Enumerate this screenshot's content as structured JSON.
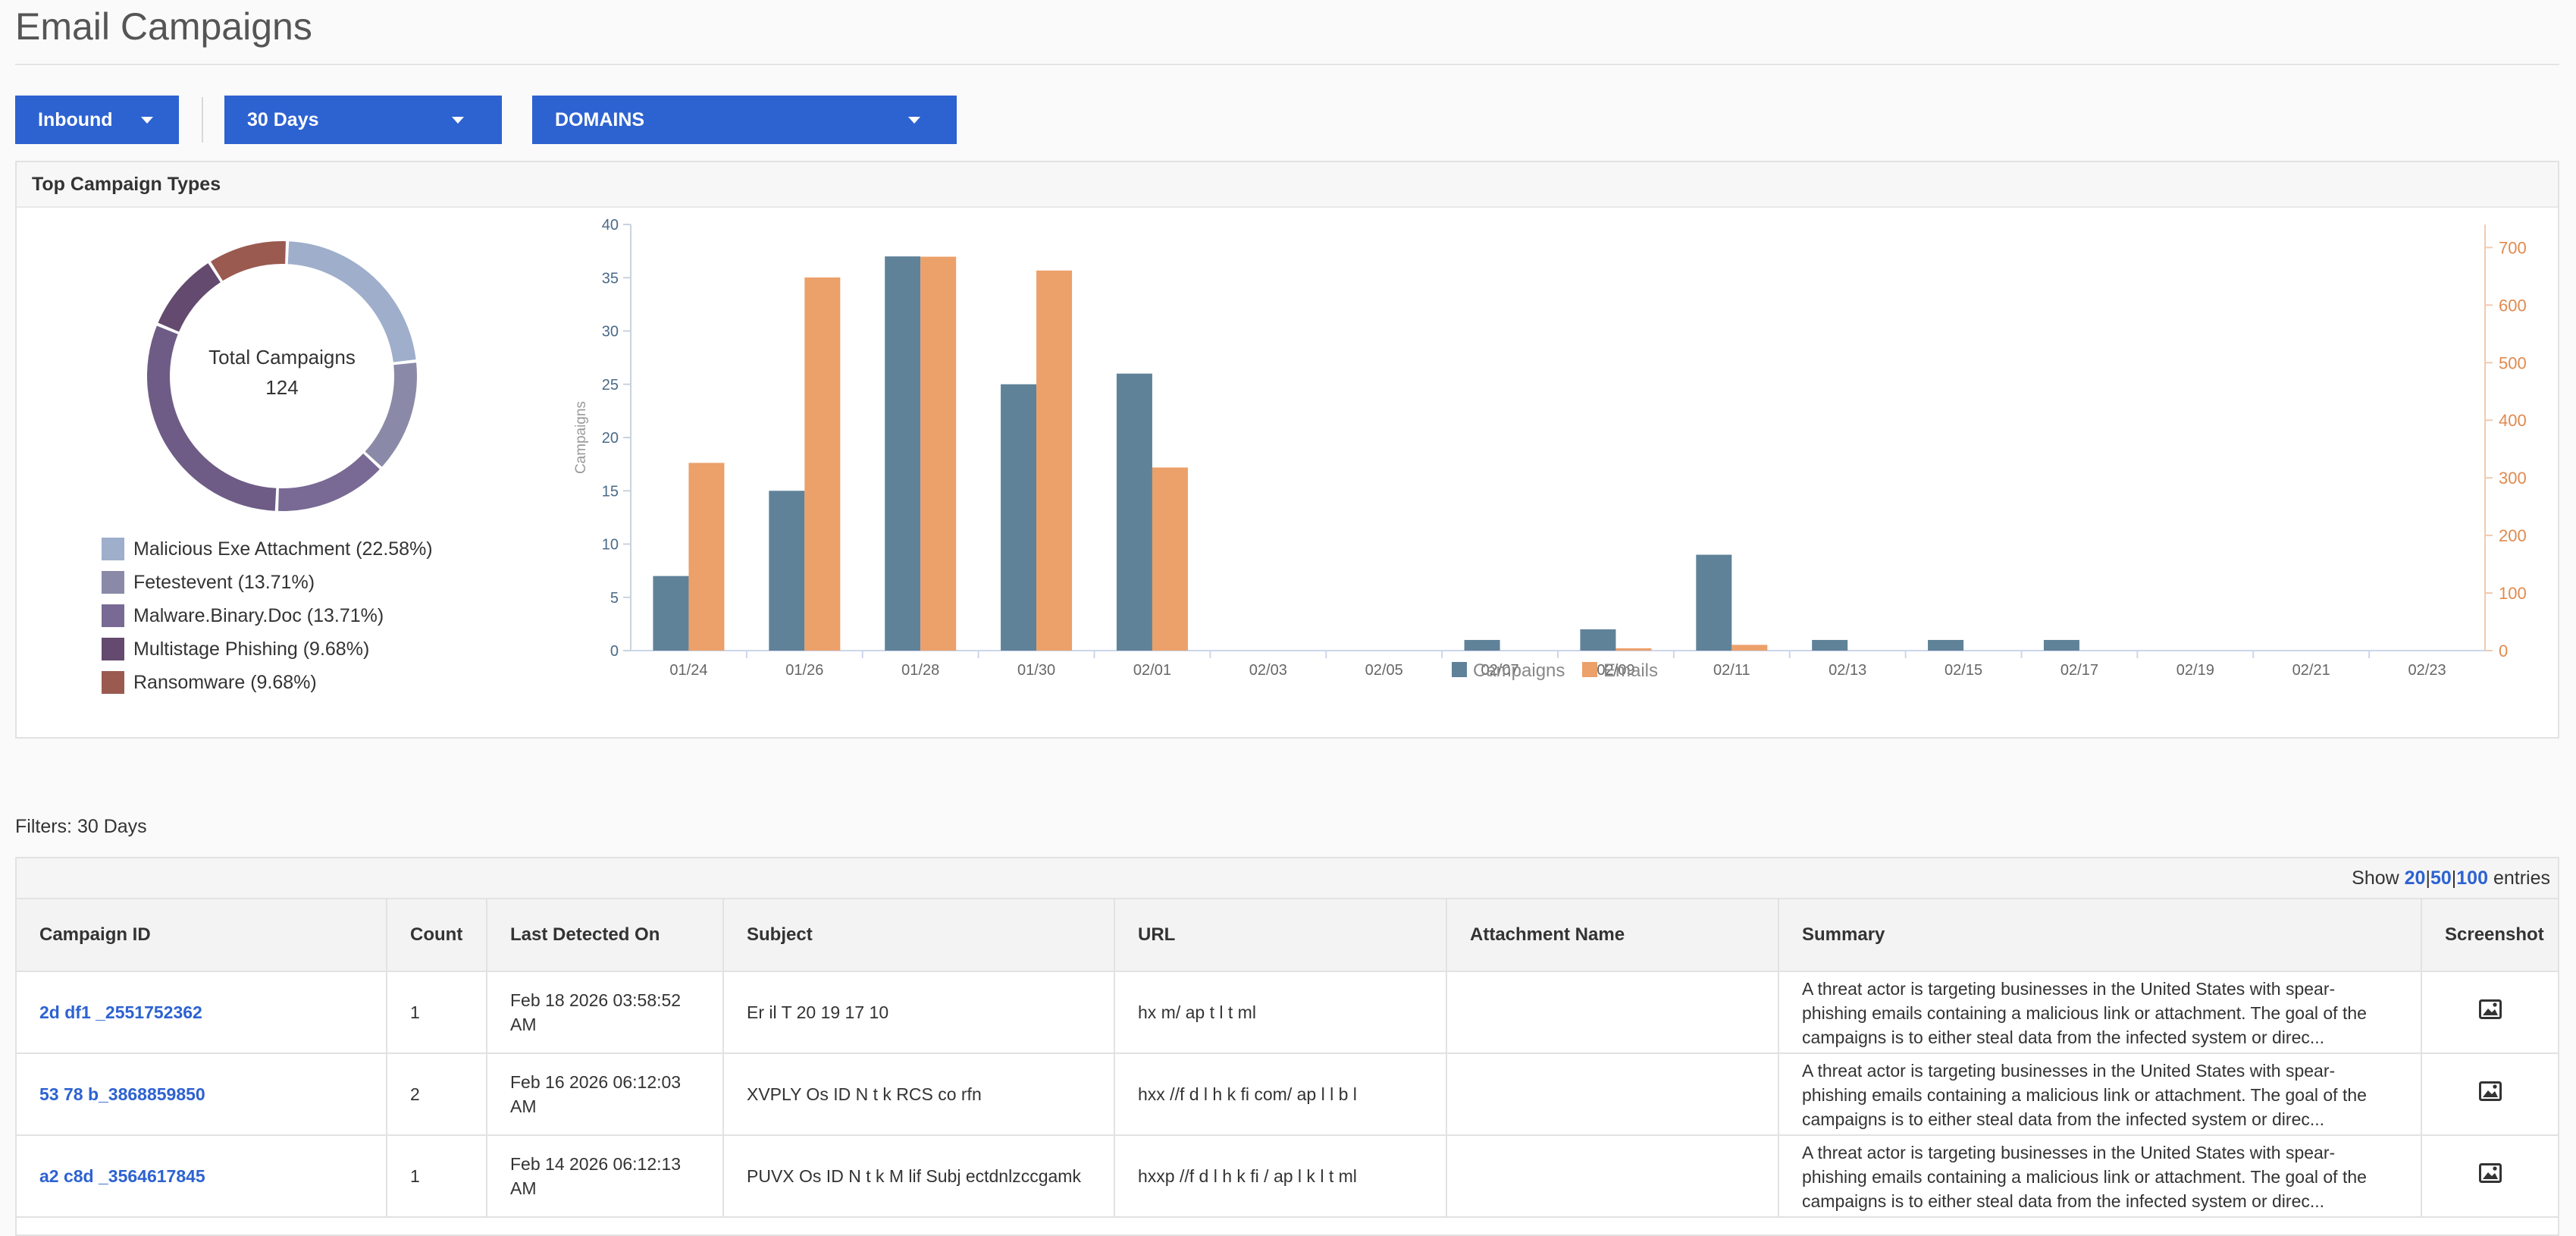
{
  "page": {
    "title": "Email Campaigns"
  },
  "controls": {
    "direction": {
      "value": "Inbound"
    },
    "period": {
      "value": "30 Days"
    },
    "scope": {
      "value": "DOMAINS"
    }
  },
  "panel": {
    "title": "Top Campaign Types"
  },
  "donut": {
    "center_label": "Total Campaigns",
    "center_value": "124",
    "slices": [
      {
        "label": "Malicious Exe Attachment (22.58%)",
        "percent": 22.58,
        "color": "#9eaecb"
      },
      {
        "label": "Fetestevent (13.71%)",
        "percent": 13.71,
        "color": "#8a8aa8"
      },
      {
        "label": "Malware.Binary.Doc (13.71%)",
        "percent": 13.71,
        "color": "#786a94"
      },
      {
        "label": "Multistage Phishing (9.68%)",
        "percent": 9.68,
        "color": "#634a6e"
      },
      {
        "label": "Ransomware (9.68%)",
        "percent": 9.68,
        "color": "#9a5a50"
      }
    ]
  },
  "chart_data": {
    "type": "bar",
    "categories": [
      "01/24",
      "01/26",
      "01/28",
      "01/30",
      "02/01",
      "02/03",
      "02/05",
      "02/07",
      "02/09",
      "02/11",
      "02/13",
      "02/15",
      "02/17",
      "02/19",
      "02/21",
      "02/23"
    ],
    "series": [
      {
        "name": "Campaigns",
        "axis": "left",
        "color": "#5f8299",
        "values": [
          7,
          15,
          37,
          25,
          26,
          0,
          0,
          1,
          2,
          9,
          1,
          1,
          1,
          0,
          0,
          0
        ]
      },
      {
        "name": "Emails",
        "axis": "right",
        "color": "#eca06a",
        "values": [
          326,
          648,
          684,
          660,
          318,
          0,
          0,
          0,
          4,
          10,
          0,
          0,
          0,
          0,
          0,
          0
        ]
      }
    ],
    "ylabel": "Campaigns",
    "y2label": "Emails",
    "ylim": [
      0,
      40
    ],
    "y2lim": [
      0,
      740
    ],
    "yticks": [
      "0",
      "5",
      "10",
      "15",
      "20",
      "25",
      "30",
      "35",
      "40"
    ],
    "y2ticks": [
      "0",
      "100",
      "200",
      "300",
      "400",
      "500",
      "600",
      "700"
    ],
    "legend": "bottom",
    "grid": false
  },
  "filters": {
    "label": "Filters: 30 Days"
  },
  "table": {
    "show_prefix": "Show",
    "show_options": [
      "20",
      "50",
      "100"
    ],
    "show_sep": "|",
    "show_suffix": "entries",
    "columns": [
      "Campaign ID",
      "Count",
      "Last Detected On",
      "Subject",
      "URL",
      "Attachment Name",
      "Summary",
      "Screenshot"
    ],
    "rows": [
      {
        "campaign_id": "2d                                                df1 _2551752362",
        "count": "1",
        "last_detected": "Feb 18 2026 03:58:52 AM",
        "subject": "Er        il T     20 19   17 10",
        "url": "hx                                               m/ ap                    t      l       t  ml",
        "attachment": "",
        "summary": "A threat actor is targeting businesses in the United States with spear-phishing emails containing a malicious link or attachment. The goal of the campaigns is to either steal data from the infected system or direc..."
      },
      {
        "campaign_id": "53                                                 78 b_3868859850",
        "count": "2",
        "last_detected": "Feb 16 2026 06:12:03 AM",
        "subject": "XVPLY Os      ID    N     t    k RCS         co rfn",
        "url": "hxx    //f d         l  h  k fi        com/ ap                      l   l  b  l",
        "attachment": "",
        "summary": "A threat actor is targeting businesses in the United States with spear-phishing emails containing a malicious link or attachment. The goal of the campaigns is to either steal data from the infected system or direc..."
      },
      {
        "campaign_id": "a2                                              c8d _3564617845",
        "count": "1",
        "last_detected": "Feb 14 2026 06:12:13 AM",
        "subject": "PUVX Os      ID    N     t    k M  lif   Subj ectdnlzccgamk",
        "url": "hxxp   //f d        l  h  k fi         / ap                      l   k  l   t  ml",
        "attachment": "",
        "summary": "A threat actor is targeting businesses in the United States with spear-phishing emails containing a malicious link or attachment. The goal of the campaigns is to either steal data from the infected system or direc..."
      }
    ]
  },
  "icons": {
    "caret": "caret-down-icon",
    "screenshot": "image-icon"
  }
}
